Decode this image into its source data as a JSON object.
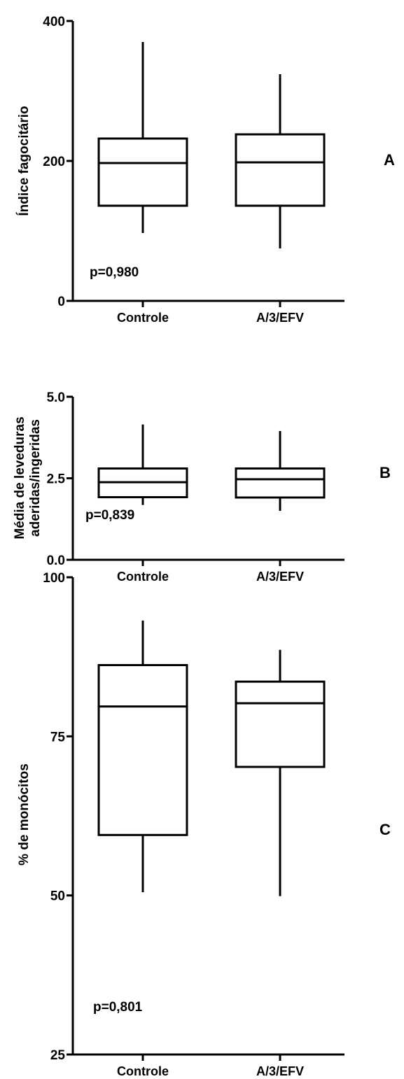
{
  "chart_data": [
    {
      "type": "box",
      "panel_label": "A",
      "ylabel": "Índice fagocitário",
      "ylim": [
        0,
        400
      ],
      "yticks": [
        0,
        200,
        400
      ],
      "ytick_labels": [
        "0",
        "200",
        "400"
      ],
      "categories": [
        "Controle",
        "A/3/EFV"
      ],
      "boxes": [
        {
          "category": "Controle",
          "min": 97,
          "q1": 136,
          "median": 197,
          "q3": 232,
          "max": 370
        },
        {
          "category": "A/3/EFV",
          "min": 75,
          "q1": 136,
          "median": 198,
          "q3": 238,
          "max": 324
        }
      ],
      "annotation": "p=0,980"
    },
    {
      "type": "box",
      "panel_label": "B",
      "ylabel_lines": [
        "Média de leveduras",
        "aderidas/ingeridas"
      ],
      "ylim": [
        0,
        5
      ],
      "yticks": [
        0,
        2.5,
        5
      ],
      "ytick_labels": [
        "0.0",
        "2.5",
        "5.0"
      ],
      "categories": [
        "Controle",
        "A/3/EFV"
      ],
      "boxes": [
        {
          "category": "Controle",
          "min": 1.68,
          "q1": 1.92,
          "median": 2.38,
          "q3": 2.8,
          "max": 4.15
        },
        {
          "category": "A/3/EFV",
          "min": 1.5,
          "q1": 1.91,
          "median": 2.47,
          "q3": 2.8,
          "max": 3.95
        }
      ],
      "annotation": "p=0,839"
    },
    {
      "type": "box",
      "panel_label": "C",
      "ylabel": "% de monócitos",
      "ylim": [
        25,
        100
      ],
      "yticks": [
        25,
        50,
        75,
        100
      ],
      "ytick_labels": [
        "25",
        "50",
        "75",
        "100"
      ],
      "categories": [
        "Controle",
        "A/3/EFV"
      ],
      "boxes": [
        {
          "category": "Controle",
          "min": 50.5,
          "q1": 59.5,
          "median": 79.7,
          "q3": 86.2,
          "max": 93.2
        },
        {
          "category": "A/3/EFV",
          "min": 49.9,
          "q1": 70.2,
          "median": 80.2,
          "q3": 83.6,
          "max": 88.6
        }
      ],
      "annotation": "p=0,801"
    }
  ]
}
